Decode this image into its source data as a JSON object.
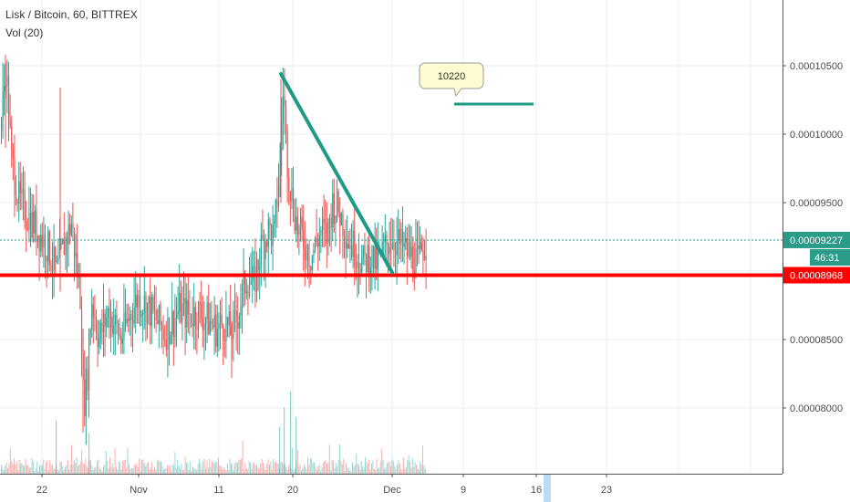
{
  "header": {
    "title": "Lisk / Bitcoin, 60, BITTREX",
    "indicator": "Vol (20)"
  },
  "chart_data": {
    "type": "candlestick",
    "symbol": "Lisk / Bitcoin",
    "interval": "60",
    "exchange": "BITTREX",
    "y_axis": {
      "ticks": [
        "0.00010500",
        "0.00010000",
        "0.00009500",
        "0.00009000",
        "0.00008500",
        "0.00008000"
      ],
      "range": [
        7.5e-05,
        0.0001097
      ]
    },
    "x_axis": {
      "ticks": [
        "22",
        "Nov",
        "11",
        "20",
        "Dec",
        "9",
        "16",
        "23"
      ]
    },
    "grid": true,
    "last_price": "0.00009227",
    "countdown": "46:31",
    "price_line_label": "0.00008968",
    "note_label": "10220",
    "colors": {
      "up": "#26a69a",
      "down": "#ef5350",
      "support": "#ff0000",
      "trend": "#1e9a86",
      "last_price_bg": "#2b9c88",
      "note_bg": "#fffbd0",
      "grid": "#e8edf2"
    },
    "price_path": [
      [
        0,
        0.0001003
      ],
      [
        6,
        0.000105
      ],
      [
        12,
        9.82e-05
      ],
      [
        20,
        9.52e-05
      ],
      [
        40,
        9.3e-05
      ],
      [
        50,
        9.2e-05
      ],
      [
        62,
        8.98e-05
      ],
      [
        70,
        9.2e-05
      ],
      [
        78,
        9.35e-05
      ],
      [
        84,
        9e-05
      ],
      [
        88,
        8.8e-05
      ],
      [
        91,
        8e-05
      ],
      [
        96,
        8.3e-05
      ],
      [
        100,
        8.8e-05
      ],
      [
        108,
        8.5e-05
      ],
      [
        118,
        8.7e-05
      ],
      [
        126,
        8.6e-05
      ],
      [
        132,
        8.5e-05
      ],
      [
        140,
        8.65e-05
      ],
      [
        150,
        8.8e-05
      ],
      [
        160,
        8.75e-05
      ],
      [
        170,
        8.65e-05
      ],
      [
        180,
        8.55e-05
      ],
      [
        186,
        8.6e-05
      ],
      [
        196,
        8.72e-05
      ],
      [
        206,
        8.68e-05
      ],
      [
        216,
        8.7e-05
      ],
      [
        226,
        8.65e-05
      ],
      [
        236,
        8.58e-05
      ],
      [
        246,
        8.62e-05
      ],
      [
        252,
        8.55e-05
      ],
      [
        258,
        8.62e-05
      ],
      [
        264,
        8.8e-05
      ],
      [
        270,
        8.95e-05
      ],
      [
        278,
        8.9e-05
      ],
      [
        286,
        9.18e-05
      ],
      [
        294,
        9.3e-05
      ],
      [
        300,
        9.25e-05
      ],
      [
        306,
        9.75e-05
      ],
      [
        310,
        0.0001035
      ],
      [
        314,
        9.85e-05
      ],
      [
        318,
        9.6e-05
      ],
      [
        322,
        9.45e-05
      ],
      [
        326,
        9.3e-05
      ],
      [
        332,
        9.22e-05
      ],
      [
        340,
        9.1e-05
      ],
      [
        346,
        9.2e-05
      ],
      [
        352,
        9.3e-05
      ],
      [
        358,
        9.25e-05
      ],
      [
        364,
        9.5e-05
      ],
      [
        370,
        9.45e-05
      ],
      [
        376,
        9.35e-05
      ],
      [
        382,
        9.22e-05
      ],
      [
        390,
        9.15e-05
      ],
      [
        398,
        9.05e-05
      ],
      [
        404,
        9.12e-05
      ],
      [
        412,
        9.05e-05
      ],
      [
        420,
        9.15e-05
      ],
      [
        428,
        9.25e-05
      ],
      [
        436,
        9.2e-05
      ],
      [
        444,
        9.15e-05
      ],
      [
        452,
        9.1e-05
      ],
      [
        458,
        9.05e-05
      ],
      [
        463,
        9.18e-05
      ],
      [
        467,
        9.22e-05
      ]
    ],
    "wick_spikes": [
      {
        "x": 6,
        "high": 0.0001058,
        "low": 9.9e-05
      },
      {
        "x": 66,
        "high": 0.0001034,
        "low": 8.85e-05
      },
      {
        "x": 91,
        "high": 8.3e-05,
        "low": 7.82e-05
      },
      {
        "x": 254,
        "high": 8.6e-05,
        "low": 8.22e-05
      },
      {
        "x": 308,
        "high": 0.000104,
        "low": 9.5e-05
      }
    ],
    "volume_spikes": [
      {
        "x": 61,
        "v": 0.55
      },
      {
        "x": 97,
        "v": 0.35
      },
      {
        "x": 306,
        "v": 0.45
      },
      {
        "x": 311,
        "v": 0.75
      },
      {
        "x": 318,
        "v": 1.0
      },
      {
        "x": 324,
        "v": 0.6
      }
    ],
    "drawings": {
      "support_price": 8.97e-05,
      "trendline": {
        "from": [
          308,
          0.0001044
        ],
        "to": [
          430,
          8.99e-05
        ]
      },
      "target_segment": {
        "from": [
          498,
          0.0001022
        ],
        "to": [
          585,
          0.0001022
        ]
      }
    }
  }
}
